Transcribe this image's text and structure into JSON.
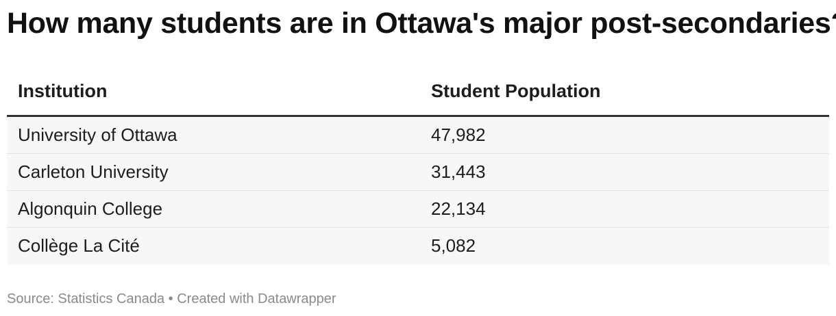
{
  "chart_data": {
    "type": "table",
    "title": "How many students are in Ottawa's major post-secondaries?",
    "columns": [
      "Institution",
      "Student Population"
    ],
    "rows": [
      [
        "University of Ottawa",
        "47,982"
      ],
      [
        "Carleton University",
        "31,443"
      ],
      [
        "Algonquin College",
        "22,134"
      ],
      [
        "Collège La Cité",
        "5,082"
      ]
    ],
    "values": [
      47982,
      31443,
      22134,
      5082
    ],
    "footer": "Source: Statistics Canada • Created with Datawrapper"
  },
  "colors": {
    "row_background": "#f7f7f7",
    "header_rule": "#333333",
    "footer_text": "#8a8a8a"
  }
}
